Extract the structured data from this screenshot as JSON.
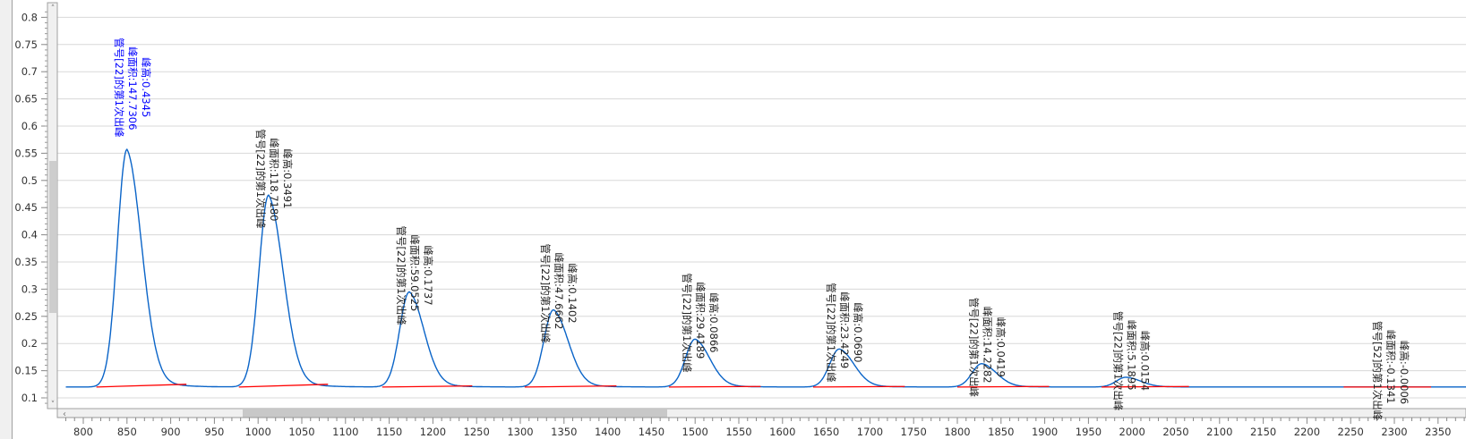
{
  "chart_data": {
    "type": "line",
    "title": "",
    "xlabel": "",
    "ylabel": "",
    "xlim": [
      770,
      2390
    ],
    "ylim": [
      0.08,
      0.82
    ],
    "x_ticks": [
      800,
      850,
      900,
      950,
      1000,
      1050,
      1100,
      1150,
      1200,
      1250,
      1300,
      1350,
      1400,
      1450,
      1500,
      1550,
      1600,
      1650,
      1700,
      1750,
      1800,
      1850,
      1900,
      1950,
      2000,
      2050,
      2100,
      2150,
      2200,
      2250,
      2300,
      2350
    ],
    "y_ticks": [
      "0.1",
      "0.15",
      "0.2",
      "0.25",
      "0.3",
      "0.35",
      "0.4",
      "0.45",
      "0.5",
      "0.55",
      "0.6",
      "0.65",
      "0.7",
      "0.75",
      "0.8"
    ],
    "grid": true,
    "baseline_level": 0.12,
    "colors": {
      "signal": "#0a64c8",
      "baseline": "#ff0000",
      "selected_label": "#0000ff",
      "label": "#222222",
      "grid": "#d8d8d8"
    },
    "peaks": [
      {
        "center": 850,
        "apex": 0.557,
        "start": 815,
        "end": 918,
        "end_level": 0.125,
        "selected": true,
        "tube": "管号[22]的第1次出峰",
        "area": "峰面积:147.7306",
        "height": "峰高:0.4345"
      },
      {
        "center": 1012,
        "apex": 0.473,
        "start": 978,
        "end": 1080,
        "end_level": 0.125,
        "selected": false,
        "tube": "管号[22]的第1次出峰",
        "area": "峰面积:118.7180",
        "height": "峰高:0.3491"
      },
      {
        "center": 1173,
        "apex": 0.295,
        "start": 1142,
        "end": 1245,
        "end_level": 0.122,
        "selected": false,
        "tube": "管号[22]的第1次出峰",
        "area": "峰面积:59.0525",
        "height": "峰高:0.1737"
      },
      {
        "center": 1338,
        "apex": 0.262,
        "start": 1305,
        "end": 1410,
        "end_level": 0.122,
        "selected": false,
        "tube": "管号[22]的第1次出峰",
        "area": "峰面积:47.6662",
        "height": "峰高:0.1402"
      },
      {
        "center": 1500,
        "apex": 0.208,
        "start": 1470,
        "end": 1575,
        "end_level": 0.121,
        "selected": false,
        "tube": "管号[22]的第1次出峰",
        "area": "峰面积:29.4189",
        "height": "峰高:0.0866"
      },
      {
        "center": 1665,
        "apex": 0.19,
        "start": 1635,
        "end": 1740,
        "end_level": 0.121,
        "selected": false,
        "tube": "管号[22]的第1次出峰",
        "area": "峰面积:23.4249",
        "height": "峰高:0.0690"
      },
      {
        "center": 1828,
        "apex": 0.163,
        "start": 1800,
        "end": 1905,
        "end_level": 0.121,
        "selected": false,
        "tube": "管号[22]的第1次出峰",
        "area": "峰面积:14.2282",
        "height": "峰高:0.0419"
      },
      {
        "center": 1993,
        "apex": 0.138,
        "start": 1965,
        "end": 2065,
        "end_level": 0.121,
        "selected": false,
        "tube": "管号[22]的第1次出峰",
        "area": "峰面积:5.1895",
        "height": "峰高:0.0154"
      },
      {
        "center": 2290,
        "apex": 0.12,
        "start": 2242,
        "end": 2342,
        "end_level": 0.12,
        "selected": false,
        "tube": "管号[52]的第1次出峰",
        "area": "峰面积:-0.1341",
        "height": "峰高:-0.0006"
      }
    ]
  }
}
